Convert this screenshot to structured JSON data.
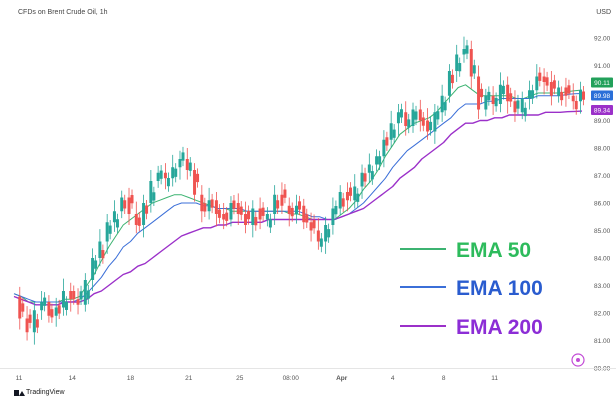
{
  "header": {
    "title": "CFDs on Brent Crude Oil, 1h",
    "currency": "USD"
  },
  "footer": {
    "brand": "TradingView"
  },
  "colors": {
    "up": "#26a69a",
    "down": "#ef5350",
    "ema50": "#3cb371",
    "ema100": "#3b6fd8",
    "ema200": "#9b30c9",
    "ema50_text": "#2dbb5c",
    "ema100_text": "#2a5ccf",
    "ema200_text": "#8c2dd6"
  },
  "chart_data": {
    "type": "line",
    "y_ticks": [
      "92.00",
      "91.00",
      "90.00",
      "89.00",
      "88.00",
      "87.00",
      "86.00",
      "85.00",
      "84.00",
      "83.00",
      "82.00",
      "81.00",
      "80.00"
    ],
    "x_ticks": [
      "11",
      "14",
      "18",
      "21",
      "25",
      "08:00",
      "Apr",
      "4",
      "8",
      "11"
    ],
    "ylim": [
      80,
      92.4
    ],
    "price_labels": [
      {
        "value": 90.11,
        "text": "90.11",
        "color": "#22a05a"
      },
      {
        "value": 89.98,
        "text": "89.98",
        "color": "#2a6fd8"
      },
      {
        "value": 89.34,
        "text": "89.34",
        "color": "#9b30c9"
      }
    ],
    "price_path": [
      82.6,
      81.8,
      81.3,
      82.1,
      82.4,
      81.9,
      82.2,
      82.8,
      82.5,
      82.3,
      83.2,
      84.0,
      84.6,
      85.3,
      85.7,
      86.2,
      85.6,
      85.2,
      86.0,
      86.8,
      87.1,
      86.9,
      87.3,
      87.6,
      87.2,
      86.3,
      85.7,
      86.1,
      85.6,
      85.4,
      86.0,
      85.6,
      85.2,
      85.8,
      85.4,
      85.6,
      86.3,
      85.9,
      85.6,
      85.9,
      85.3,
      85.0,
      84.6,
      85.2,
      85.8,
      86.4,
      86.1,
      86.6,
      87.1,
      87.4,
      87.7,
      88.3,
      88.9,
      89.3,
      88.8,
      89.4,
      89.0,
      88.6,
      89.3,
      89.9,
      90.8,
      91.4,
      91.6,
      90.6,
      89.4,
      89.9,
      89.6,
      90.3,
      89.7,
      89.3,
      89.8,
      90.1,
      90.6,
      90.4,
      89.9,
      90.2,
      89.9,
      89.7,
      90.11
    ],
    "series": [
      {
        "name": "EMA 50",
        "key": "ema50",
        "values": [
          82.7,
          82.6,
          82.4,
          82.4,
          82.4,
          82.4,
          82.4,
          82.5,
          82.5,
          82.6,
          83.0,
          83.4,
          83.9,
          84.4,
          84.8,
          85.2,
          85.4,
          85.6,
          85.8,
          86.0,
          86.1,
          86.2,
          86.3,
          86.3,
          86.2,
          86.1,
          86.0,
          85.9,
          85.8,
          85.8,
          85.7,
          85.7,
          85.7,
          85.7,
          85.7,
          85.7,
          85.7,
          85.7,
          85.6,
          85.6,
          85.5,
          85.4,
          85.4,
          85.4,
          85.4,
          85.6,
          85.8,
          86.1,
          86.5,
          86.8,
          87.2,
          87.7,
          88.1,
          88.5,
          88.7,
          88.9,
          89.0,
          89.1,
          89.3,
          89.6,
          89.9,
          90.2,
          90.3,
          90.1,
          89.9,
          89.9,
          89.9,
          89.9,
          89.9,
          89.8,
          89.8,
          89.9,
          90.0,
          90.0,
          90.0,
          90.0,
          90.05,
          90.08,
          90.11
        ]
      },
      {
        "name": "EMA 100",
        "key": "ema100",
        "values": [
          82.7,
          82.6,
          82.5,
          82.4,
          82.4,
          82.4,
          82.4,
          82.4,
          82.4,
          82.5,
          82.7,
          83.0,
          83.3,
          83.7,
          84.0,
          84.4,
          84.6,
          84.9,
          85.1,
          85.3,
          85.5,
          85.7,
          85.9,
          86.0,
          86.0,
          86.0,
          85.9,
          85.9,
          85.8,
          85.8,
          85.8,
          85.8,
          85.7,
          85.7,
          85.7,
          85.7,
          85.7,
          85.7,
          85.7,
          85.7,
          85.6,
          85.5,
          85.5,
          85.4,
          85.4,
          85.5,
          85.6,
          85.8,
          86.0,
          86.3,
          86.6,
          86.9,
          87.3,
          87.6,
          87.9,
          88.1,
          88.3,
          88.5,
          88.7,
          88.9,
          89.1,
          89.4,
          89.6,
          89.6,
          89.6,
          89.7,
          89.7,
          89.8,
          89.8,
          89.8,
          89.8,
          89.8,
          89.9,
          89.9,
          89.9,
          89.9,
          89.95,
          89.97,
          89.98
        ]
      },
      {
        "name": "EMA 200",
        "key": "ema200",
        "values": [
          82.6,
          82.5,
          82.4,
          82.3,
          82.3,
          82.3,
          82.3,
          82.4,
          82.4,
          82.4,
          82.5,
          82.7,
          82.8,
          83.0,
          83.2,
          83.4,
          83.5,
          83.7,
          83.8,
          84.0,
          84.2,
          84.4,
          84.6,
          84.8,
          84.9,
          85.0,
          85.1,
          85.1,
          85.2,
          85.2,
          85.3,
          85.3,
          85.3,
          85.3,
          85.3,
          85.4,
          85.4,
          85.4,
          85.4,
          85.4,
          85.4,
          85.4,
          85.4,
          85.4,
          85.4,
          85.5,
          85.6,
          85.7,
          85.8,
          86.0,
          86.2,
          86.4,
          86.6,
          86.9,
          87.1,
          87.3,
          87.6,
          87.8,
          88.0,
          88.2,
          88.5,
          88.7,
          88.9,
          88.9,
          89.0,
          89.0,
          89.1,
          89.1,
          89.2,
          89.2,
          89.2,
          89.2,
          89.2,
          89.3,
          89.3,
          89.3,
          89.32,
          89.33,
          89.34
        ]
      }
    ],
    "legend": [
      {
        "label": "EMA 50",
        "key": "ema50"
      },
      {
        "label": "EMA 100",
        "key": "ema100"
      },
      {
        "label": "EMA 200",
        "key": "ema200"
      }
    ]
  }
}
